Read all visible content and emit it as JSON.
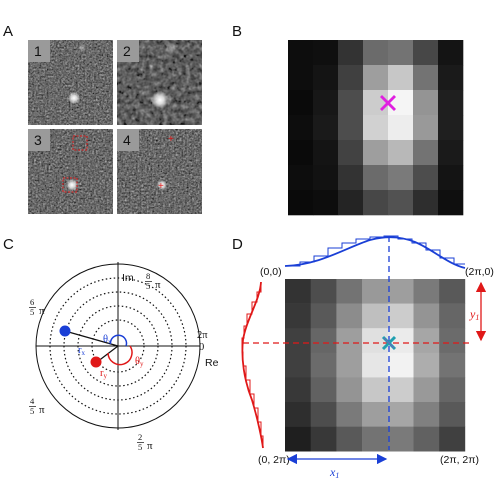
{
  "panels": {
    "a": {
      "label": "A",
      "tiles": [
        {
          "label": "1"
        },
        {
          "label": "2"
        },
        {
          "label": "3"
        },
        {
          "label": "4"
        }
      ]
    },
    "b": {
      "label": "B",
      "grid": [
        [
          0.05,
          0.06,
          0.2,
          0.42,
          0.45,
          0.28,
          0.08
        ],
        [
          0.05,
          0.08,
          0.25,
          0.62,
          0.78,
          0.45,
          0.1
        ],
        [
          0.04,
          0.09,
          0.3,
          0.8,
          0.96,
          0.58,
          0.12
        ],
        [
          0.05,
          0.1,
          0.3,
          0.82,
          0.93,
          0.6,
          0.12
        ],
        [
          0.04,
          0.08,
          0.26,
          0.62,
          0.72,
          0.45,
          0.1
        ],
        [
          0.05,
          0.07,
          0.2,
          0.42,
          0.48,
          0.3,
          0.08
        ],
        [
          0.04,
          0.05,
          0.14,
          0.28,
          0.32,
          0.18,
          0.06
        ]
      ],
      "marker_color": "#e020e0"
    },
    "c": {
      "label": "C",
      "axis_im": "Im",
      "axis_re": "Re",
      "top_frac_num": "8",
      "top_frac_den": "5",
      "left_frac_num": "6",
      "left_frac_den": "5",
      "right_label": "2π",
      "right_zero": "0",
      "bottom_left_frac_num": "4",
      "bottom_left_frac_den": "5",
      "bottom_frac_num": "2",
      "bottom_frac_den": "5",
      "pi": "π",
      "r_x": "r",
      "r_x_sub": "x",
      "r_y": "r",
      "r_y_sub": "y",
      "theta_x": "θ",
      "theta_x_sub": "x",
      "theta_y": "θ",
      "theta_y_sub": "y",
      "blue": "#1a3fd6",
      "red": "#e01818"
    },
    "d": {
      "label": "D",
      "grid": [
        [
          0.2,
          0.3,
          0.45,
          0.6,
          0.62,
          0.48,
          0.35
        ],
        [
          0.22,
          0.35,
          0.55,
          0.75,
          0.8,
          0.58,
          0.4
        ],
        [
          0.25,
          0.4,
          0.62,
          0.88,
          0.92,
          0.65,
          0.42
        ],
        [
          0.25,
          0.42,
          0.62,
          0.9,
          0.95,
          0.68,
          0.45
        ],
        [
          0.22,
          0.38,
          0.58,
          0.78,
          0.8,
          0.6,
          0.4
        ],
        [
          0.18,
          0.3,
          0.48,
          0.62,
          0.65,
          0.5,
          0.35
        ],
        [
          0.12,
          0.22,
          0.35,
          0.45,
          0.48,
          0.38,
          0.25
        ]
      ],
      "corner_tl": "(0,0)",
      "corner_tr": "(2π,0)",
      "corner_bl": "(0, 2π)",
      "corner_br": "(2π, 2π)",
      "x1": "x",
      "x1_sub": "1",
      "y1": "y",
      "y1_sub": "1",
      "blue": "#1a3fd6",
      "red": "#e01818"
    }
  }
}
